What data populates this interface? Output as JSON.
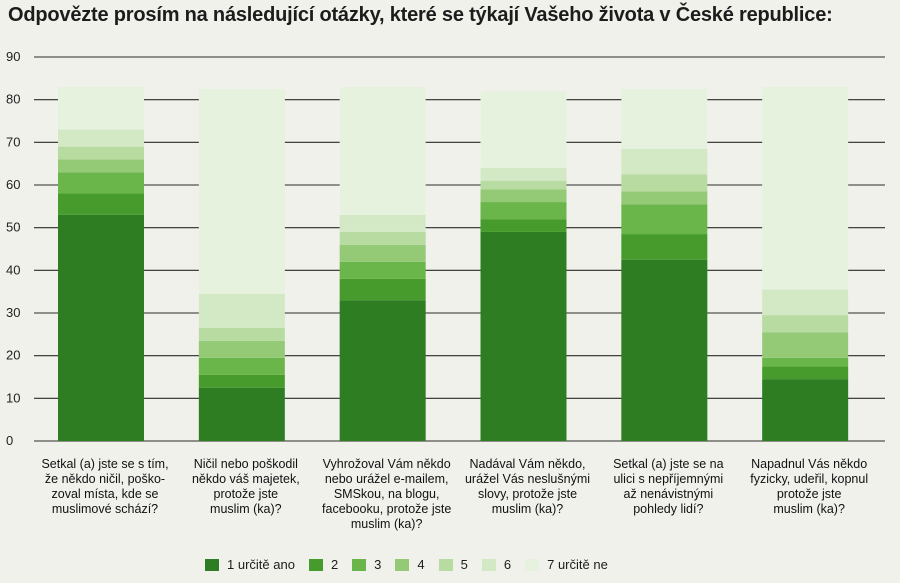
{
  "title": "Odpovězte prosím na následující otázky, které se týkají Vašeho života v České republice:",
  "colors": [
    "#2f7d23",
    "#469b2c",
    "#6bb64a",
    "#94ca76",
    "#b7dba0",
    "#d3e9c6",
    "#e6f2de"
  ],
  "chart_data": {
    "type": "bar",
    "stacked": true,
    "ylim": [
      0,
      90
    ],
    "yticks": [
      0,
      10,
      20,
      30,
      40,
      50,
      60,
      70,
      80,
      90
    ],
    "grid": true,
    "legend_position": "bottom",
    "categories": [
      [
        "Setkal (a) jste se s tím,",
        "že někdo ničil, poško-",
        "zoval místa, kde se",
        "muslimové schází?"
      ],
      [
        "Ničil nebo poškodil",
        "někdo váš majetek,",
        "protože jste",
        "muslim (ka)?"
      ],
      [
        "Vyhrožoval Vám někdo",
        "nebo urážel e-mailem,",
        "SMSkou, na blogu,",
        "facebooku, protože jste",
        "muslim (ka)?"
      ],
      [
        "Nadával Vám někdo,",
        "urážel Vás neslušnými",
        "slovy, protože jste",
        "muslim (ka)?"
      ],
      [
        "Setkal (a) jste se na",
        "ulici s nepříjemnými",
        "až nenávistnými",
        "pohledy lidí?"
      ],
      [
        "Napadnul Vás někdo",
        "fyzicky, udeřil, kopnul",
        "protože jste",
        "muslim (ka)?"
      ]
    ],
    "series": [
      {
        "name": "1 určitě ano",
        "values": [
          53,
          12.5,
          33,
          49,
          42.5,
          14.5
        ]
      },
      {
        "name": "2",
        "values": [
          5,
          3,
          5,
          3,
          6,
          3
        ]
      },
      {
        "name": "3",
        "values": [
          5,
          4,
          4,
          4,
          7,
          2
        ]
      },
      {
        "name": "4",
        "values": [
          3,
          4,
          4,
          3,
          3,
          6
        ]
      },
      {
        "name": "5",
        "values": [
          3,
          3,
          3,
          2,
          4,
          4
        ]
      },
      {
        "name": "6",
        "values": [
          4,
          8,
          4,
          3,
          6,
          6
        ]
      },
      {
        "name": "7 určitě ne",
        "values": [
          10,
          48,
          30,
          18,
          14,
          47.5
        ]
      }
    ]
  }
}
